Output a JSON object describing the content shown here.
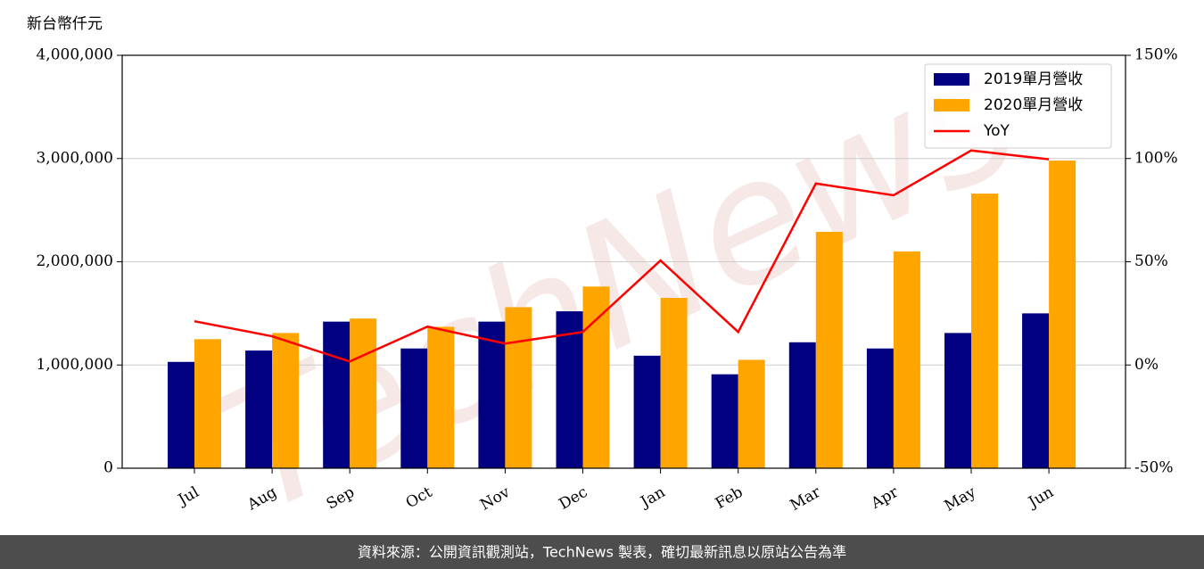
{
  "chart_data": {
    "type": "bar",
    "y_label": "新台幣仟元",
    "watermark": "TechNews",
    "footer": "資料來源：公開資訊觀測站，TechNews 製表，確切最新訊息以原站公告為準",
    "categories": [
      "Jul",
      "Aug",
      "Sep",
      "Oct",
      "Nov",
      "Dec",
      "Jan",
      "Feb",
      "Mar",
      "Apr",
      "May",
      "Jun"
    ],
    "series": [
      {
        "name": "2019單月營收",
        "color": "#000080",
        "values": [
          1030000,
          1140000,
          1420000,
          1160000,
          1420000,
          1520000,
          1090000,
          910000,
          1220000,
          1160000,
          1310000,
          1500000
        ]
      },
      {
        "name": "2020單月營收",
        "color": "#ffa500",
        "values": [
          1250000,
          1310000,
          1450000,
          1370000,
          1560000,
          1760000,
          1650000,
          1050000,
          2290000,
          2100000,
          2660000,
          2980000
        ]
      },
      {
        "name": "YoY",
        "type": "line",
        "axis": "y2",
        "color": "#ff0000",
        "values": [
          21.2,
          13.9,
          1.7,
          18.6,
          10.4,
          16,
          50.6,
          16,
          87.9,
          82.2,
          103.9,
          99.6
        ]
      }
    ],
    "ylim": [
      0,
      4000000
    ],
    "yticks": [
      {
        "value": 0,
        "label": "0"
      },
      {
        "value": 1000000,
        "label": "1,000,000"
      },
      {
        "value": 2000000,
        "label": "2,000,000"
      },
      {
        "value": 3000000,
        "label": "3,000,000"
      },
      {
        "value": 4000000,
        "label": "4,000,000"
      }
    ],
    "y2lim": [
      -50,
      150
    ],
    "y2ticks": [
      {
        "value": -50,
        "label": "-50%"
      },
      {
        "value": 0,
        "label": "0%"
      },
      {
        "value": 50,
        "label": "50%"
      },
      {
        "value": 100,
        "label": "100%"
      },
      {
        "value": 150,
        "label": "150%"
      }
    ],
    "grid": true,
    "legend": "upper right"
  }
}
